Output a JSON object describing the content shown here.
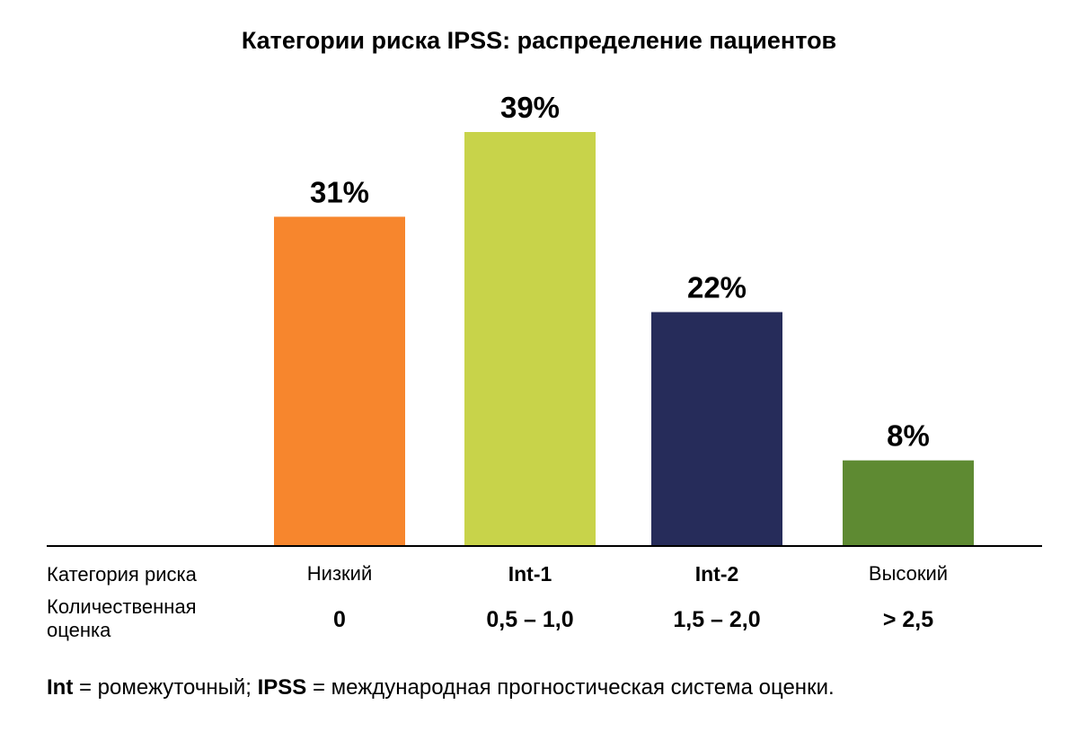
{
  "chart_data": {
    "type": "bar",
    "title": "Категории риска IPSS: распределение пациентов",
    "categories": [
      "Низкий",
      "Int-1",
      "Int-2",
      "Высокий"
    ],
    "scores": [
      "0",
      "0,5 – 1,0",
      "1,5 – 2,0",
      "> 2,5"
    ],
    "values": [
      31,
      39,
      22,
      8
    ],
    "value_labels": [
      "31%",
      "39%",
      "22%",
      "8%"
    ],
    "colors": [
      "#f7862d",
      "#c8d34a",
      "#262c5a",
      "#5e8a32"
    ],
    "row_labels": {
      "category": "Категория риска",
      "score": "Количественная оценка"
    },
    "ylim": [
      0,
      39
    ],
    "grid": false,
    "legend": "none"
  },
  "footnote": {
    "int_term": "Int",
    "int_def": " = ромежуточный; ",
    "ipss_term": "IPSS",
    "ipss_def": " = международная прогностическая система оценки."
  }
}
